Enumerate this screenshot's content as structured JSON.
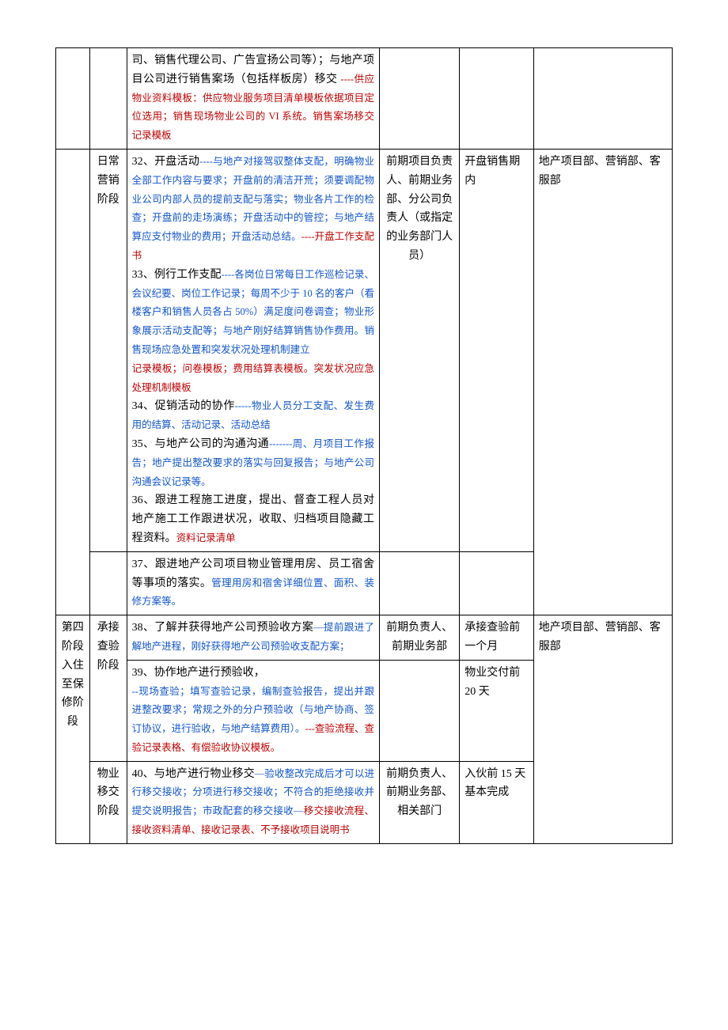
{
  "rows": [
    {
      "col1": "",
      "col2": "",
      "c3": [
        {
          "cls": "black",
          "t": "司、销售代理公司、广告宣扬公司等）；与地产项目公司进行销售案场（包括样板房）移交 "
        },
        {
          "cls": "red",
          "t": "----供应物业资料模板：供应物业服务项目清单模板依据项目定位选用；销售现场物业公司的 VI 系统。销售案场移交记录模板"
        }
      ],
      "col4": "",
      "col5": "",
      "col6": ""
    },
    {
      "col1": "",
      "col2": "日常营销阶段",
      "c3": [
        {
          "cls": "black",
          "t": "32、开盘活动"
        },
        {
          "cls": "blue",
          "t": "----与地产对接驾驭整体支配，明确物业全部工作内容与要求；开盘前的清洁开荒；须要调配物业公司内部人员的提前支配与落实；物业各片工作的检查；开盘前的走场演练；开盘活动中的管控；与地产结算应支付物业的费用；开盘活动总结。"
        },
        {
          "cls": "red",
          "t": "----开盘工作支配书"
        },
        {
          "cls": "br"
        },
        {
          "cls": "black",
          "t": "33、例行工作支配"
        },
        {
          "cls": "blue",
          "t": "----各岗位日常每日工作巡检记录、会议纪要、岗位工作记录；每周不少于 10 名的客户（看楼客户和销售人员各占 50%）满足度问卷调查；物业形象展示活动支配等；与地产刚好结算销售协作费用。销售现场应急处置和突发状况处理机制建立"
        },
        {
          "cls": "br"
        },
        {
          "cls": "red",
          "t": "记录模板；问卷模板；费用结算表模板。突发状况应急处理机制模板"
        },
        {
          "cls": "br"
        },
        {
          "cls": "black",
          "t": "34、促销活动的协作"
        },
        {
          "cls": "blue",
          "t": "-----物业人员分工支配、发生费用的结算、活动记录、活动总结"
        },
        {
          "cls": "br"
        },
        {
          "cls": "black",
          "t": "35、与地产公司的沟通沟通"
        },
        {
          "cls": "blue",
          "t": "-------周、月项目工作报告；地产提出整改要求的落实与回复报告；与地产公司沟通会议记录等。"
        },
        {
          "cls": "br"
        },
        {
          "cls": "black",
          "t": "36、跟进工程施工进度，提出、督查工程人员对地产施工工作跟进状况，收取、归档项目隐藏工程资料。"
        },
        {
          "cls": "red",
          "t": "资料记录清单"
        }
      ],
      "col4": "前期项目负责人、前期业务部、分公司负责人（或指定的业务部门人员）",
      "col5": "开盘销售期内",
      "col6": "地产项目部、营销部、客服部"
    },
    {
      "col1": "",
      "col2": "",
      "c3": [
        {
          "cls": "black",
          "t": "37、跟进地产公司项目物业管理用房、员工宿舍等事项的落实。"
        },
        {
          "cls": "blue",
          "t": "管理用房和宿舍详细位置、面积、装修方案等。"
        }
      ],
      "col4": "",
      "col5": "",
      "col6": ""
    },
    {
      "col1": "第四阶段入住至保修阶段",
      "col2": "承接查验阶段",
      "c3": [
        {
          "cls": "black",
          "t": "38、了解并获得地产公司预验收方案"
        },
        {
          "cls": "blue",
          "t": "—提前跟进了解地产进程，刚好获得地产公司预验收支配方案；"
        }
      ],
      "col4": "前期负责人、前期业务部",
      "col5": "承接查验前一个月",
      "col6": "地产项目部、营销部、客服部"
    },
    {
      "col1": "",
      "col2": "",
      "c3": [
        {
          "cls": "black",
          "t": "39、协作地产进行预验收，"
        },
        {
          "cls": "br"
        },
        {
          "cls": "blue",
          "t": "--现场查验；填写查验记录，编制查验报告，提出并跟进整改要求；常规之外的分户预验收（与地产协商、签订协议，进行验收，与地产结算费用）。"
        },
        {
          "cls": "red",
          "t": "---查验流程、查验记录表格、有偿验收协议模板。"
        }
      ],
      "col4": "",
      "col5": "物业交付前20 天",
      "col6": ""
    },
    {
      "col1": "",
      "col2": "物业移交阶段",
      "c3": [
        {
          "cls": "black",
          "t": "40、与地产进行物业移交"
        },
        {
          "cls": "blue",
          "t": "—验收整改完成后才可以进行移交接收；分项进行移交接收；不符合的拒绝接收并提交说明报告；市政配套的移交接收—"
        },
        {
          "cls": "red",
          "t": "移交接收流程、接收资料清单、接收记录表、不予接收项目说明书"
        }
      ],
      "col4": "前期负责人、前期业务部、相关部门",
      "col5": "入伙前 15 天基本完成",
      "col6": ""
    }
  ],
  "layout": {
    "col1_rowspans": [
      1,
      2,
      3,
      1,
      1
    ],
    "col2_rowspans": [
      1,
      1,
      1,
      2,
      1,
      1
    ],
    "col4_rowspans": [
      1,
      1,
      1,
      1,
      1,
      1
    ],
    "col6_rowspans": [
      1,
      2,
      3,
      1,
      1
    ]
  }
}
